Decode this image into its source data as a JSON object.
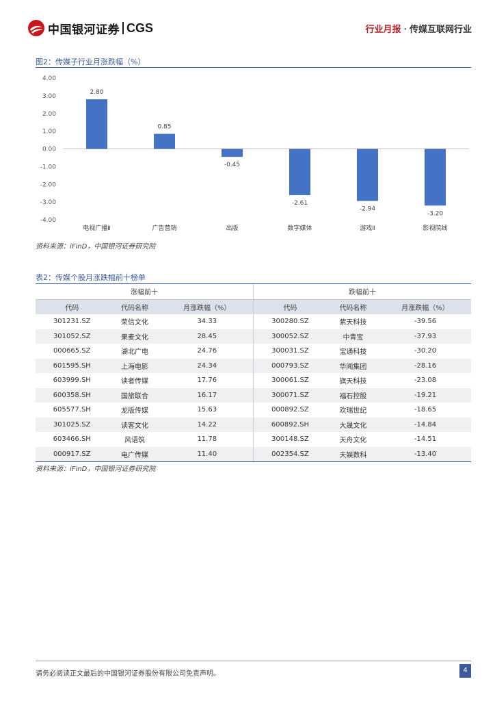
{
  "header": {
    "logo_cn": "中国银河证券",
    "logo_en": "CGS",
    "report_type": "行业月报",
    "separator": "·",
    "topic": "传媒互联网行业"
  },
  "figure": {
    "caption": "图2：传媒子行业月涨跌幅（%）",
    "source": "资料来源：iFinD，中国银河证券研究院"
  },
  "chart_data": {
    "type": "bar",
    "categories": [
      "电视广播Ⅱ",
      "广告营销",
      "出版",
      "数字媒体",
      "游戏Ⅱ",
      "影视院线"
    ],
    "values": [
      2.8,
      0.85,
      -0.45,
      -2.61,
      -2.94,
      -3.2
    ],
    "value_labels": [
      "2.80",
      "0.85",
      "-0.45",
      "-2.61",
      "-2.94",
      "-3.20"
    ],
    "ylim": [
      -4.0,
      4.0
    ],
    "yticks": [
      "4.00",
      "3.00",
      "2.00",
      "1.00",
      "0.00",
      "-1.00",
      "-2.00",
      "-3.00",
      "-4.00"
    ],
    "ytick_values": [
      4,
      3,
      2,
      1,
      0,
      -1,
      -2,
      -3,
      -4
    ],
    "bar_color": "#4472c4",
    "grid": false
  },
  "table": {
    "caption": "表2：传媒个股月涨跌幅前十榜单",
    "source": "资料来源：iFinD，中国银河证券研究院",
    "group_gain": "涨幅前十",
    "group_loss": "跌幅前十",
    "columns": [
      "代码",
      "代码名称",
      "月涨跌幅（%）",
      "代码",
      "代码名称",
      "月涨跌幅（%）"
    ],
    "rows": [
      [
        "301231.SZ",
        "荣信文化",
        "34.33",
        "300280.SZ",
        "紫天科技",
        "-39.56"
      ],
      [
        "301052.SZ",
        "果麦文化",
        "28.45",
        "300052.SZ",
        "中青宝",
        "-37.93"
      ],
      [
        "000665.SZ",
        "湖北广电",
        "24.76",
        "300031.SZ",
        "宝通科技",
        "-30.20"
      ],
      [
        "601595.SH",
        "上海电影",
        "24.34",
        "000793.SZ",
        "华闻集团",
        "-28.16"
      ],
      [
        "603999.SH",
        "读者传媒",
        "17.76",
        "300061.SZ",
        "旗天科技",
        "-23.08"
      ],
      [
        "600358.SH",
        "国旅联合",
        "16.17",
        "300071.SZ",
        "福石控股",
        "-19.21"
      ],
      [
        "605577.SH",
        "龙版传媒",
        "15.63",
        "000892.SZ",
        "欢瑞世纪",
        "-18.65"
      ],
      [
        "301025.SZ",
        "读客文化",
        "14.22",
        "600892.SH",
        "大晟文化",
        "-14.84"
      ],
      [
        "603466.SH",
        "风语筑",
        "11.78",
        "300148.SZ",
        "天舟文化",
        "-14.51"
      ],
      [
        "000917.SZ",
        "电广传媒",
        "11.40",
        "002354.SZ",
        "天娱数科",
        "-13.40"
      ]
    ]
  },
  "footer": {
    "disclaimer": "请务必阅读正文最后的中国银河证券股份有限公司免责声明。",
    "page_number": "4"
  }
}
